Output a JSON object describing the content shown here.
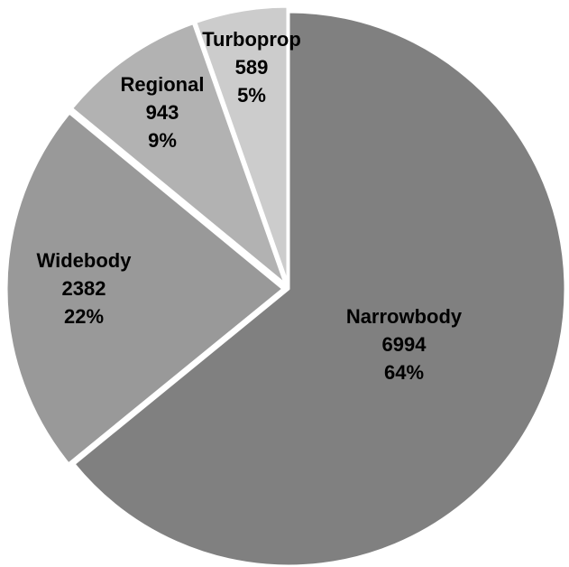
{
  "chart_data": {
    "type": "pie",
    "slices": [
      {
        "name": "Narrowbody",
        "value": 6994,
        "percent": "64%",
        "color": "#808080"
      },
      {
        "name": "Widebody",
        "value": 2382,
        "percent": "22%",
        "color": "#999999"
      },
      {
        "name": "Regional",
        "value": 943,
        "percent": "9%",
        "color": "#b2b2b2"
      },
      {
        "name": "Turboprop",
        "value": 589,
        "percent": "5%",
        "color": "#cccccc"
      }
    ],
    "separator_color": "#ffffff"
  }
}
